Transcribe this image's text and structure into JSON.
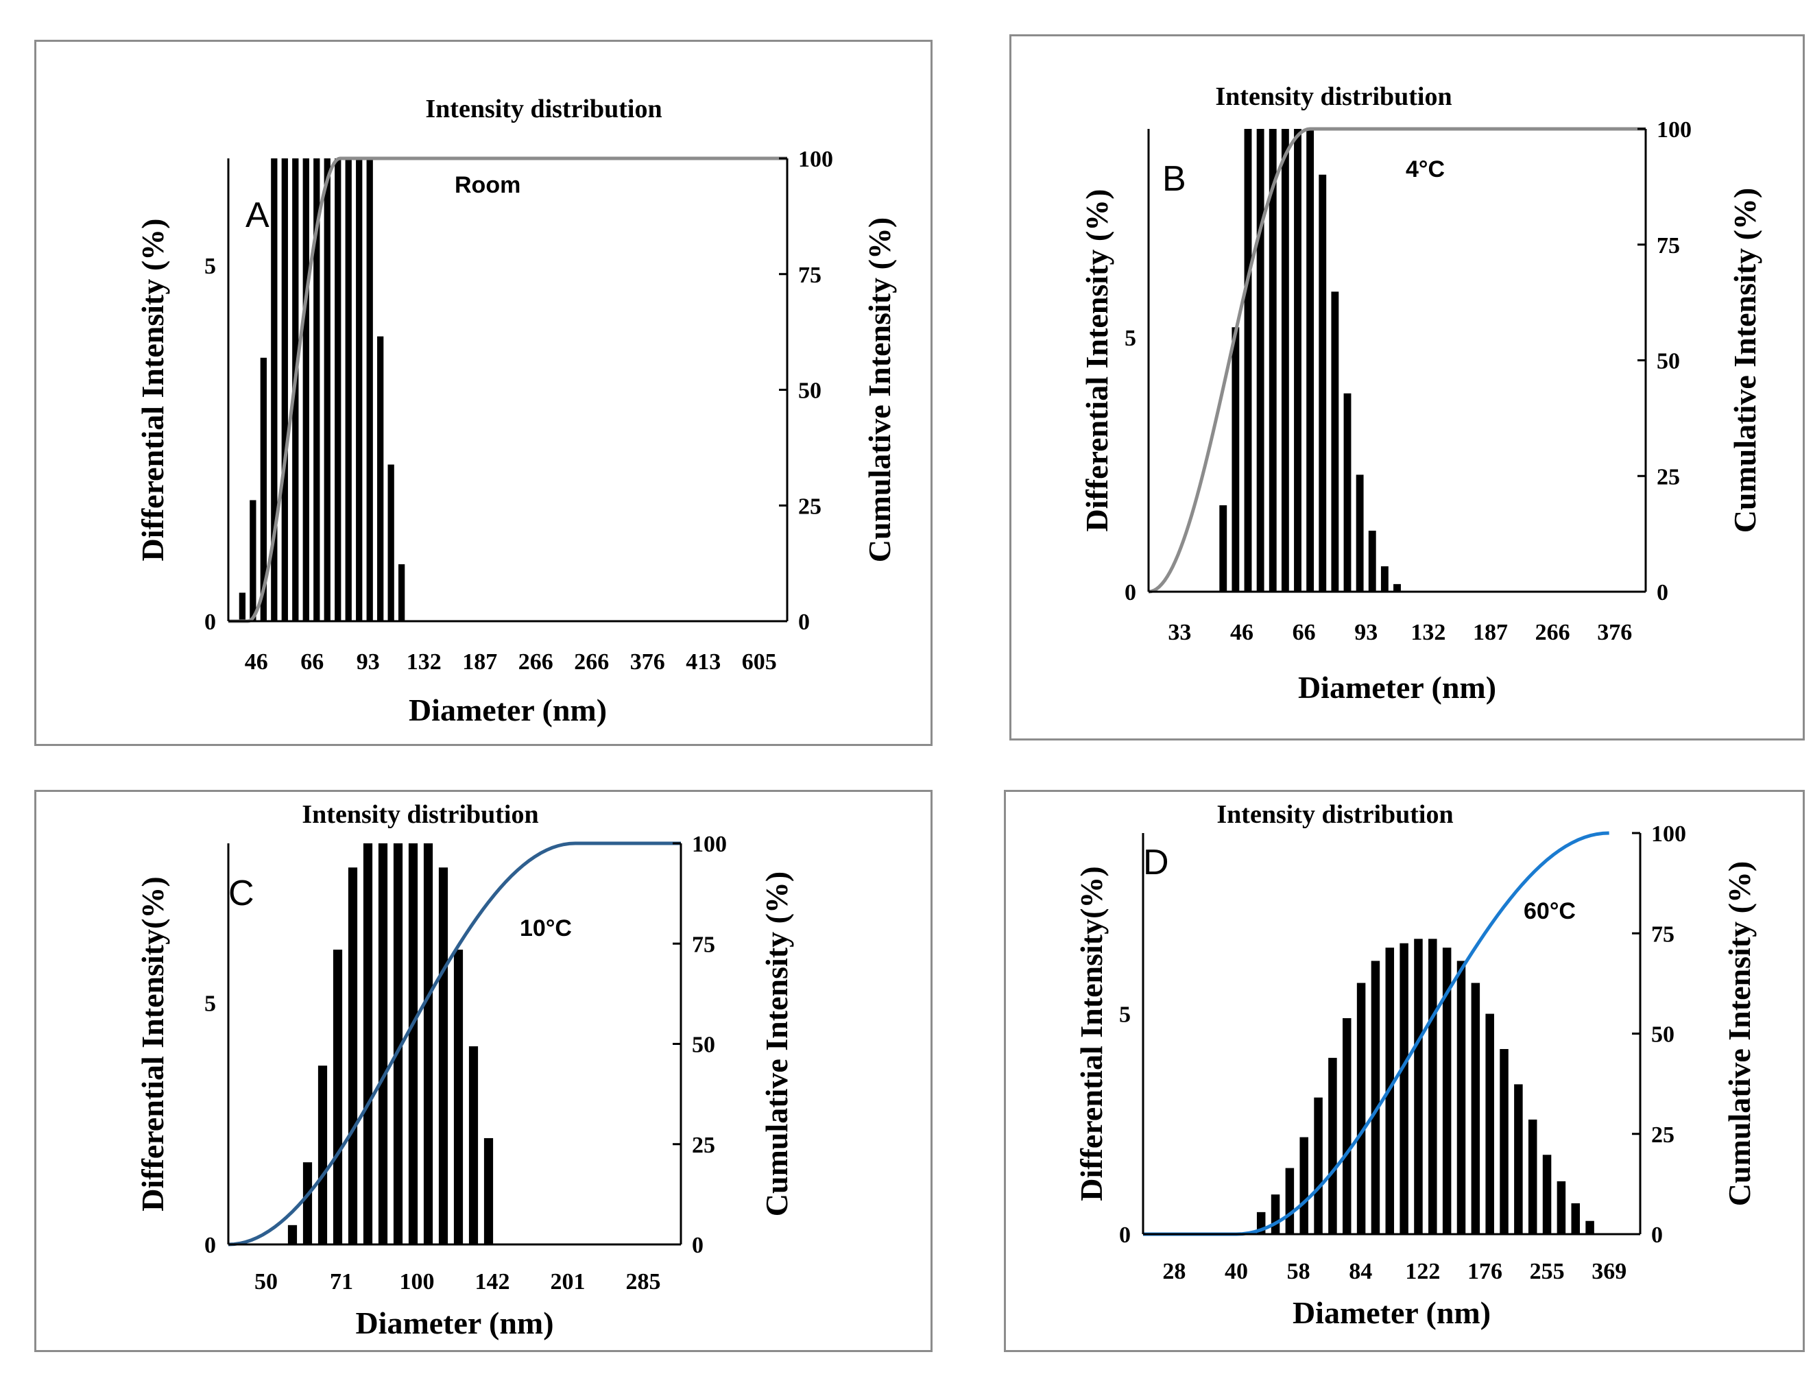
{
  "chart_data": [
    {
      "type": "bar",
      "panel_letter": "A",
      "title": "Intensity distribution",
      "annotation": "Room",
      "xlabel": "Diameter (nm)",
      "ylabel": "Differential Intensity (%)",
      "y2label": "Cumulative Intensity (%)",
      "x_tick_labels": [
        "46",
        "66",
        "93",
        "132",
        "187",
        "266",
        "266",
        "376",
        "413",
        "605"
      ],
      "y_ticks": [
        0,
        5
      ],
      "y_max": 6.5,
      "y2_ticks": [
        0,
        25,
        50,
        75,
        100
      ],
      "y2_max": 100,
      "bars": [
        0.4,
        1.7,
        3.7,
        6.5,
        6.5,
        6.5,
        6.5,
        6.5,
        6.5,
        6.5,
        6.5,
        6.5,
        6.5,
        4.0,
        2.2,
        0.8
      ],
      "bar_start": 0.25,
      "bar_step": 0.19,
      "cumulative": {
        "start": 0.35,
        "end": 2.0,
        "color": "#8c8c8c"
      }
    },
    {
      "type": "bar",
      "panel_letter": "B",
      "title": "Intensity distribution",
      "annotation": "4°C",
      "xlabel": "Diameter (nm)",
      "ylabel": "Differential Intensity (%)",
      "y2label": "Cumulative Intensity (%)",
      "x_tick_labels": [
        "33",
        "46",
        "66",
        "93",
        "132",
        "187",
        "266",
        "376"
      ],
      "y_ticks": [
        0,
        5
      ],
      "y_max": 9.1,
      "y2_ticks": [
        0,
        25,
        50,
        75,
        100
      ],
      "y2_max": 100,
      "bars": [
        1.7,
        5.2,
        9.1,
        9.1,
        9.1,
        9.1,
        9.1,
        9.1,
        8.2,
        5.9,
        3.9,
        2.3,
        1.2,
        0.5,
        0.15
      ],
      "bar_start": 1.2,
      "bar_step": 0.2,
      "cumulative": {
        "start": 0.0,
        "end": 2.6,
        "color": "#8c8c8c"
      }
    },
    {
      "type": "bar",
      "panel_letter": "C",
      "title": "Intensity distribution",
      "annotation": "10°C",
      "xlabel": "Diameter (nm)",
      "ylabel": "Differential Intensity(%)",
      "y2label": "Cumulative Intensity (%)",
      "x_tick_labels": [
        "50",
        "71",
        "100",
        "142",
        "201",
        "285"
      ],
      "y_ticks": [
        0,
        5
      ],
      "y_max": 8.3,
      "y2_ticks": [
        0,
        25,
        50,
        75,
        100
      ],
      "y2_max": 100,
      "bars": [
        0.4,
        1.7,
        3.7,
        6.1,
        7.8,
        8.3,
        8.3,
        8.3,
        8.3,
        8.3,
        7.8,
        6.1,
        4.1,
        2.2
      ],
      "bar_start": 0.85,
      "bar_step": 0.2,
      "cumulative": {
        "start": 0.0,
        "end": 4.6,
        "color": "#2e5f8f"
      }
    },
    {
      "type": "bar",
      "panel_letter": "D",
      "title": "Intensity distribution",
      "annotation": "60°C",
      "xlabel": "Diameter (nm)",
      "ylabel": "Differential Intensity(%)",
      "y2label": "Cumulative Intensity (%)",
      "x_tick_labels": [
        "28",
        "40",
        "58",
        "84",
        "122",
        "176",
        "255",
        "369"
      ],
      "y_ticks": [
        0,
        5
      ],
      "y_max": 9.1,
      "y2_ticks": [
        0,
        25,
        50,
        75,
        100
      ],
      "y2_max": 100,
      "bars": [
        0.5,
        0.9,
        1.5,
        2.2,
        3.1,
        4.0,
        4.9,
        5.7,
        6.2,
        6.5,
        6.6,
        6.7,
        6.7,
        6.5,
        6.2,
        5.7,
        5.0,
        4.2,
        3.4,
        2.6,
        1.8,
        1.2,
        0.7,
        0.3
      ],
      "bar_start": 1.9,
      "bar_step": 0.23,
      "cumulative": {
        "start": 1.5,
        "end": 7.5,
        "color": "#1a7bd0"
      }
    }
  ]
}
